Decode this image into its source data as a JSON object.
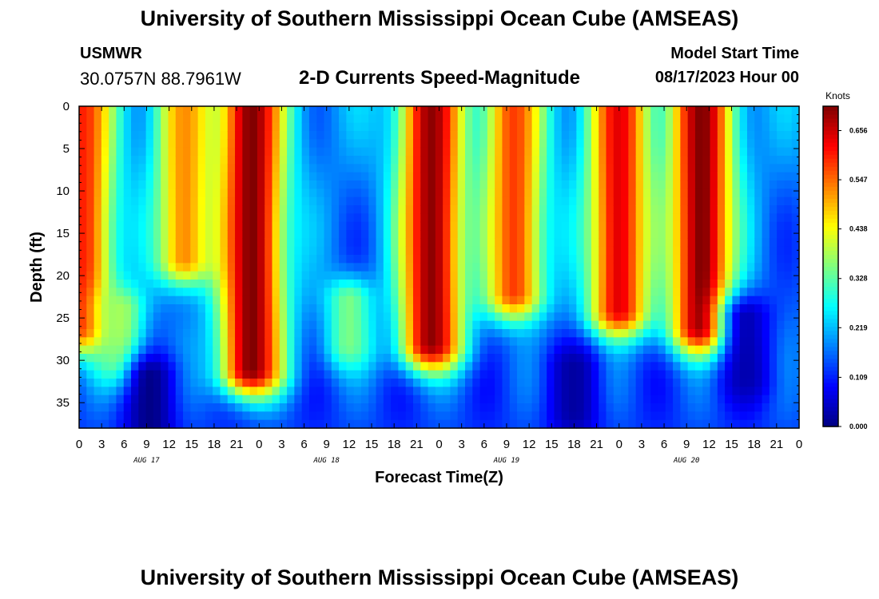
{
  "header": {
    "title": "University of Southern Mississippi Ocean Cube (AMSEAS)",
    "station": "USMWR",
    "coordinates": "30.0757N  88.7961W",
    "product": "2-D Currents Speed-Magnitude",
    "start_label": "Model Start Time",
    "start_time": "08/17/2023 Hour 00"
  },
  "footer": {
    "title": "University of Southern Mississippi Ocean Cube (AMSEAS)"
  },
  "chart_data": {
    "type": "heatmap",
    "title": "2-D Currents Speed-Magnitude",
    "xlabel": "Forecast Time(Z)",
    "ylabel": "Depth (ft)",
    "x_range_hours": [
      0,
      96
    ],
    "y_range_ft": [
      0,
      38
    ],
    "y_inverted": true,
    "x_tick_labels": [
      "0",
      "3",
      "6",
      "9",
      "12",
      "15",
      "18",
      "21",
      "0",
      "3",
      "6",
      "9",
      "12",
      "15",
      "18",
      "21",
      "0",
      "3",
      "6",
      "9",
      "12",
      "15",
      "18",
      "21",
      "0",
      "3",
      "6",
      "9",
      "12",
      "15",
      "18",
      "21",
      "0"
    ],
    "day_labels": [
      {
        "label": "AUG 17",
        "hour": 9
      },
      {
        "label": "AUG 18",
        "hour": 33
      },
      {
        "label": "AUG 19",
        "hour": 57
      },
      {
        "label": "AUG 20",
        "hour": 81
      }
    ],
    "y_ticks": [
      0,
      5,
      10,
      15,
      20,
      25,
      30,
      35
    ],
    "colorbar": {
      "unit": "Knots",
      "range": [
        0.0,
        0.71
      ],
      "tick_labels": [
        "0.000",
        "0.109",
        "0.219",
        "0.328",
        "0.438",
        "0.547",
        "0.656"
      ],
      "tick_values": [
        0.0,
        0.109,
        0.219,
        0.328,
        0.438,
        0.547,
        0.656
      ],
      "colormap": "jet"
    },
    "grid_resolution": {
      "x_steps": 97,
      "y_steps": 39
    },
    "features": [
      {
        "hour": 0.5,
        "depth_top": 0,
        "depth_bottom": 26,
        "peak": 0.6
      },
      {
        "hour": 14.0,
        "depth_top": 0,
        "depth_bottom": 18,
        "peak": 0.52
      },
      {
        "hour": 23.0,
        "depth_top": 0,
        "depth_bottom": 31,
        "peak": 0.71
      },
      {
        "hour": 47.0,
        "depth_top": 0,
        "depth_bottom": 28,
        "peak": 0.7
      },
      {
        "hour": 58.0,
        "depth_top": 0,
        "depth_bottom": 22,
        "peak": 0.58
      },
      {
        "hour": 72.0,
        "depth_top": 0,
        "depth_bottom": 24,
        "peak": 0.64
      },
      {
        "hour": 83.0,
        "depth_top": 0,
        "depth_bottom": 26,
        "peak": 0.71
      },
      {
        "hour": 5.5,
        "depth_top": 24,
        "depth_bottom": 30,
        "peak": 0.38
      },
      {
        "hour": 36.0,
        "depth_top": 23,
        "depth_bottom": 28,
        "peak": 0.35
      },
      {
        "hour": 9.5,
        "depth_top": 32,
        "depth_bottom": 38,
        "peak": 0.0
      },
      {
        "hour": 66.0,
        "depth_top": 31,
        "depth_bottom": 36,
        "peak": 0.02
      },
      {
        "hour": 89.0,
        "depth_top": 25,
        "depth_bottom": 32,
        "peak": 0.03
      }
    ]
  }
}
